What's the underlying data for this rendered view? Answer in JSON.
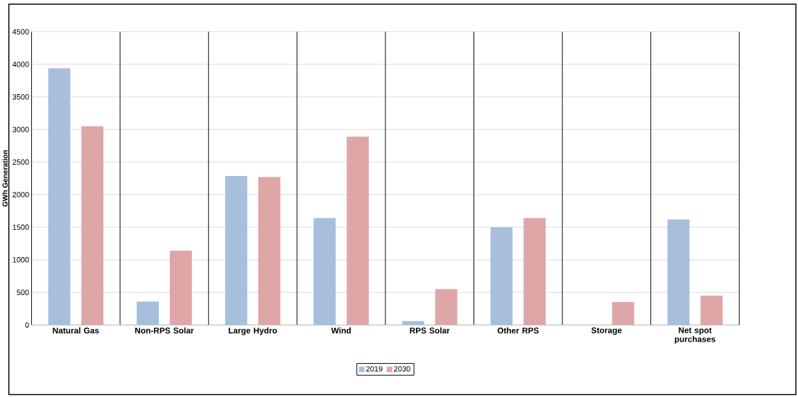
{
  "chart_data": {
    "type": "bar",
    "ylabel": "GWh Generation",
    "categories": [
      "Natural Gas",
      "Non-RPS Solar",
      "Large Hydro",
      "Wind",
      "RPS Solar",
      "Other RPS",
      "Storage",
      "Net spot purchases"
    ],
    "series": [
      {
        "name": "2019",
        "color": "#a7bfdd",
        "values": [
          3940,
          360,
          2285,
          1640,
          60,
          1500,
          null,
          1620
        ]
      },
      {
        "name": "2030",
        "color": "#dfa6a6",
        "values": [
          3050,
          1140,
          2270,
          2890,
          550,
          1640,
          350,
          450
        ]
      }
    ],
    "ylim": [
      0,
      4500
    ],
    "yticks": [
      0,
      500,
      1000,
      1500,
      2000,
      2500,
      3000,
      3500,
      4000,
      4500
    ],
    "grid": true,
    "legend": "bottom"
  }
}
